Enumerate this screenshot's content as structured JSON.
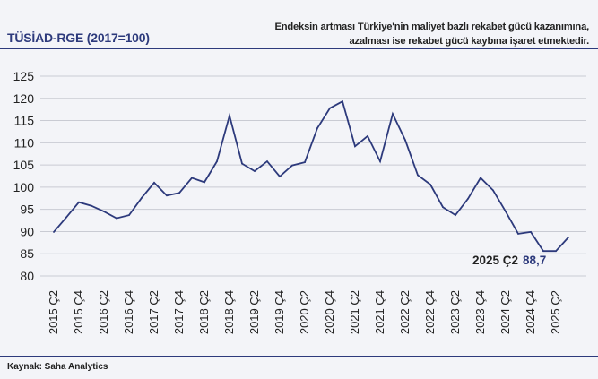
{
  "header": {
    "title": "TÜSİAD-RGE (2017=100)",
    "note_line1": "Endeksin artması Türkiye'nin maliyet bazlı rekabet gücü kazanımına,",
    "note_line2": "azalması ise rekabet gücü kaybına işaret etmektedir."
  },
  "footer": {
    "source": "Kaynak: Saha Analytics"
  },
  "colors": {
    "line": "#2d3a7c",
    "grid": "#c9cbd3",
    "accent": "#2d3a7c"
  },
  "chart_data": {
    "type": "line",
    "title": "TÜSİAD-RGE (2017=100)",
    "xlabel": "",
    "ylabel": "",
    "ylim": [
      80,
      125
    ],
    "yticks": [
      80,
      85,
      90,
      95,
      100,
      105,
      110,
      115,
      120,
      125
    ],
    "grid": true,
    "x_tick_labels": [
      "2015 Ç2",
      "2015 Ç4",
      "2016 Ç2",
      "2016 Ç4",
      "2017 Ç2",
      "2017 Ç4",
      "2018 Ç2",
      "2018 Ç4",
      "2019 Ç2",
      "2019 Ç4",
      "2020 Ç2",
      "2020 Ç4",
      "2021 Ç2",
      "2021 Ç4",
      "2022 Ç2",
      "2022 Ç4",
      "2023 Ç2",
      "2023 Ç4",
      "2024 Ç2",
      "2024 Ç4",
      "2025 Ç2"
    ],
    "series": [
      {
        "name": "TÜSİAD-RGE",
        "values": [
          89.9,
          93.2,
          96.6,
          95.8,
          94.5,
          93.0,
          93.7,
          97.6,
          101.0,
          98.1,
          98.7,
          102.1,
          101.1,
          105.8,
          116.1,
          105.3,
          103.6,
          105.8,
          102.4,
          104.9,
          105.6,
          113.3,
          117.8,
          119.3,
          109.2,
          111.5,
          105.8,
          116.5,
          110.6,
          102.7,
          100.6,
          95.5,
          93.7,
          97.4,
          102.1,
          99.3,
          94.5,
          89.5,
          89.9,
          85.6,
          85.6,
          88.7
        ]
      }
    ],
    "annotation": {
      "label": "2025 Ç2",
      "value": "88,7"
    }
  }
}
